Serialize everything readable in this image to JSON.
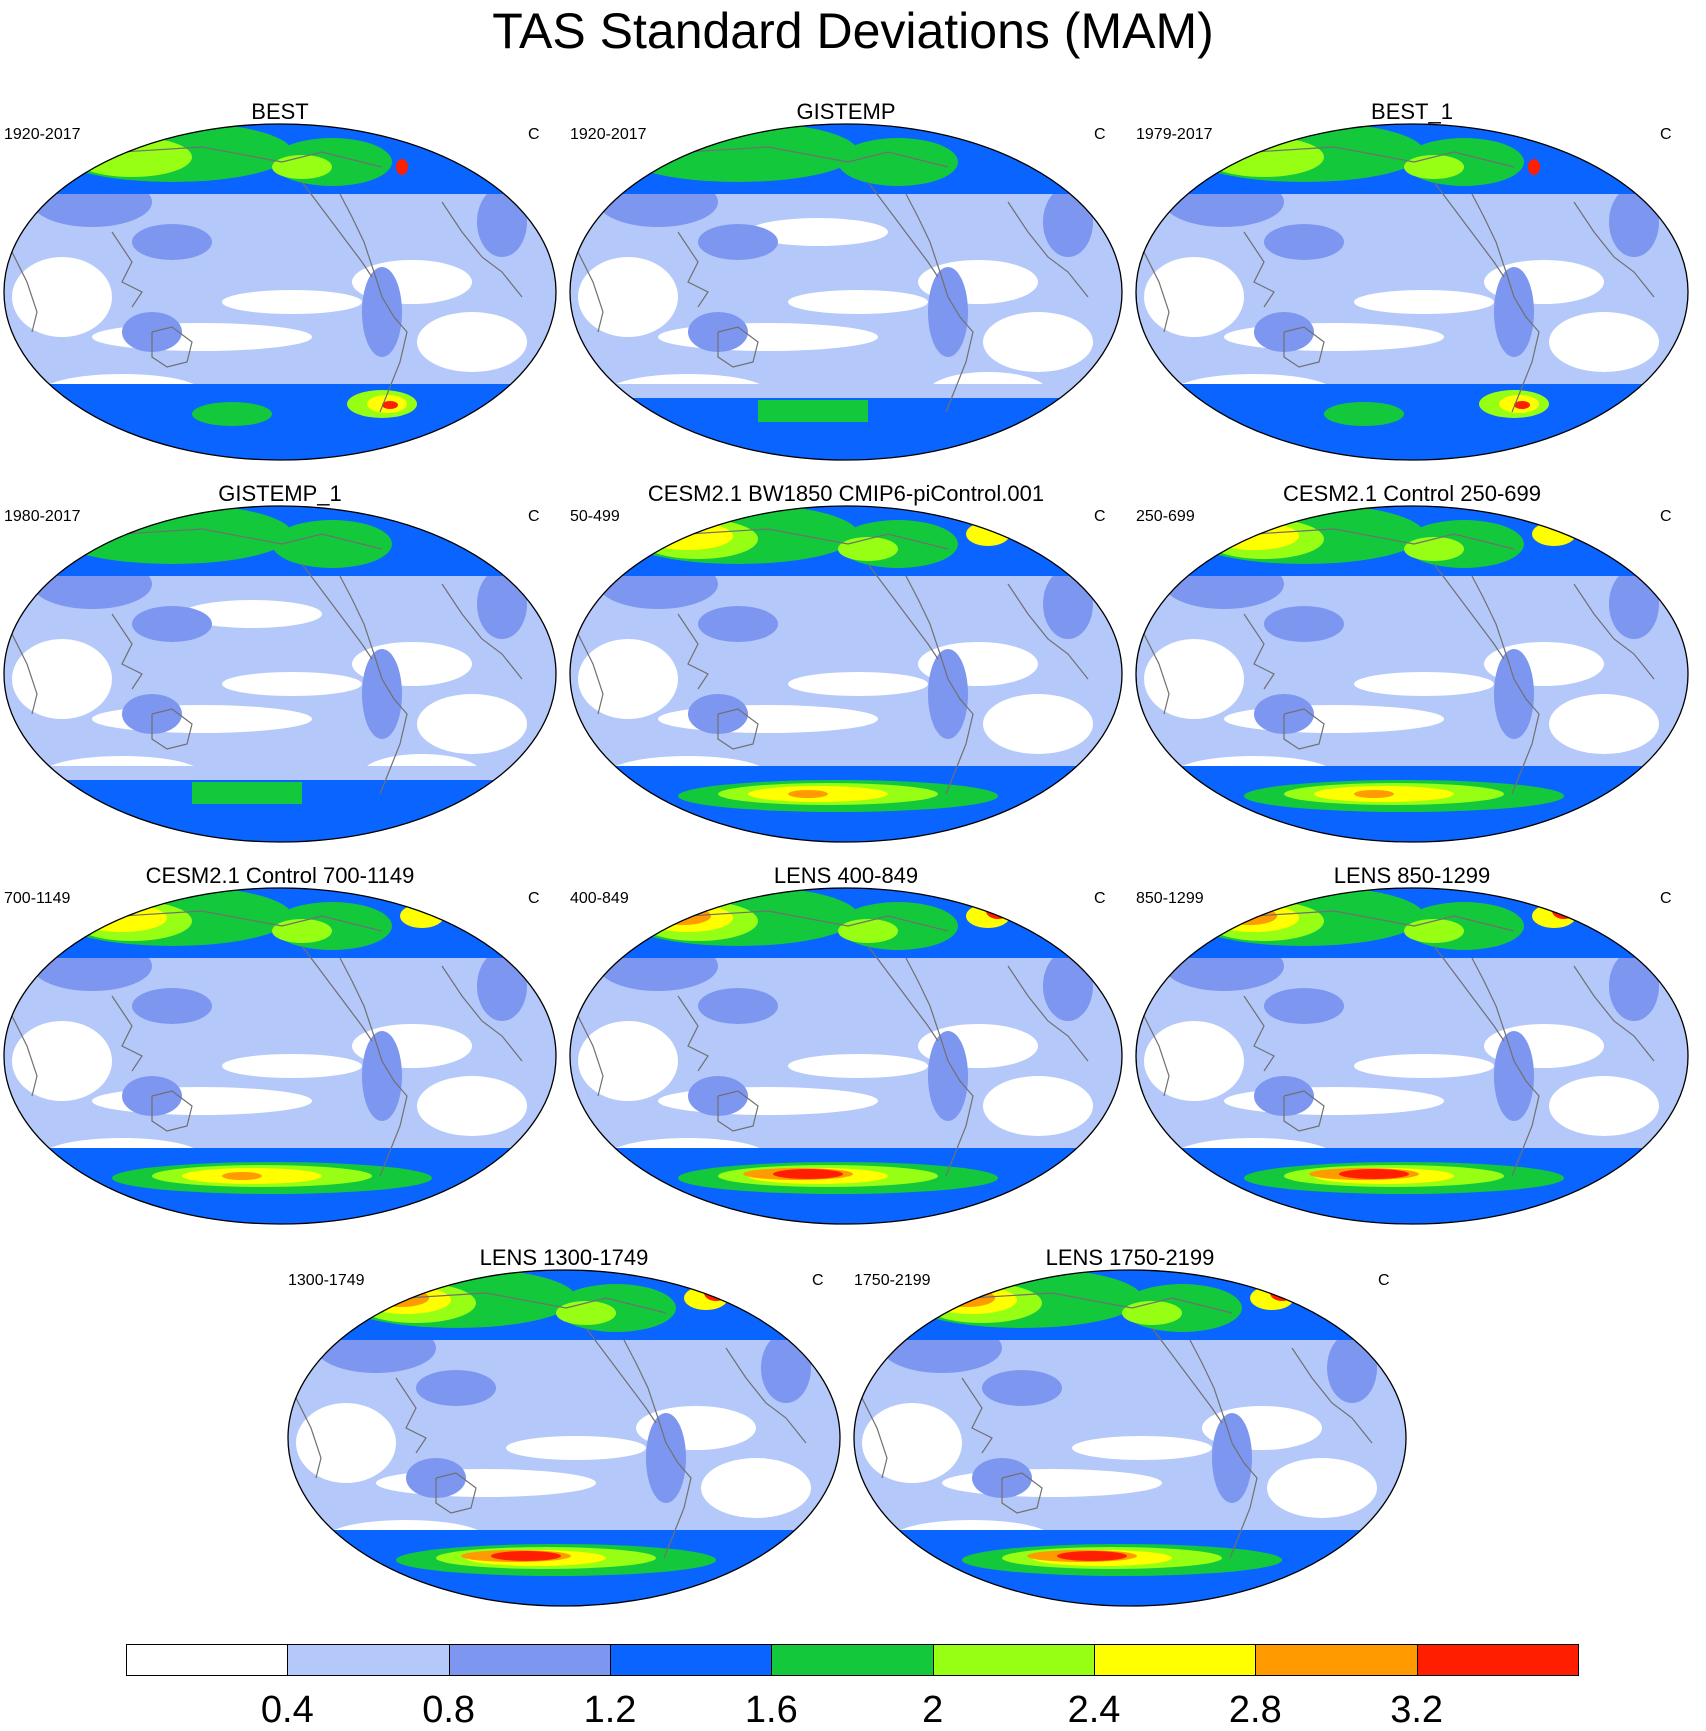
{
  "title": "TAS Standard Deviations (MAM)",
  "colorbar": {
    "labels": [
      "0.4",
      "0.8",
      "1.2",
      "1.6",
      "2",
      "2.4",
      "2.8",
      "3.2"
    ],
    "colors": [
      "#ffffff",
      "#b4c8fa",
      "#7d96f0",
      "#0a64ff",
      "#14c83c",
      "#96ff14",
      "#ffff00",
      "#ff9b00",
      "#ff1e00"
    ]
  },
  "panels": [
    {
      "title": "BEST",
      "period": "1920-2017",
      "unit": "C",
      "intensity": 1,
      "antarctic": "best"
    },
    {
      "title": "GISTEMP",
      "period": "1920-2017",
      "unit": "C",
      "intensity": 0,
      "antarctic": "gis"
    },
    {
      "title": "BEST_1",
      "period": "1979-2017",
      "unit": "C",
      "intensity": 1,
      "antarctic": "best"
    },
    {
      "title": "GISTEMP_1",
      "period": "1980-2017",
      "unit": "C",
      "intensity": 0,
      "antarctic": "gis"
    },
    {
      "title": "CESM2.1 BW1850 CMIP6-piControl.001",
      "period": "50-499",
      "unit": "C",
      "intensity": 2,
      "antarctic": "model"
    },
    {
      "title": "CESM2.1 Control 250-699",
      "period": "250-699",
      "unit": "C",
      "intensity": 2,
      "antarctic": "model"
    },
    {
      "title": "CESM2.1 Control 700-1149",
      "period": "700-1149",
      "unit": "C",
      "intensity": 2,
      "antarctic": "model"
    },
    {
      "title": "LENS 400-849",
      "period": "400-849",
      "unit": "C",
      "intensity": 3,
      "antarctic": "lens"
    },
    {
      "title": "LENS 850-1299",
      "period": "850-1299",
      "unit": "C",
      "intensity": 3,
      "antarctic": "lens"
    },
    {
      "title": "LENS 1300-1749",
      "period": "1300-1749",
      "unit": "C",
      "intensity": 3,
      "antarctic": "lens"
    },
    {
      "title": "LENS 1750-2199",
      "period": "1750-2199",
      "unit": "C",
      "intensity": 3,
      "antarctic": "lens"
    }
  ]
}
